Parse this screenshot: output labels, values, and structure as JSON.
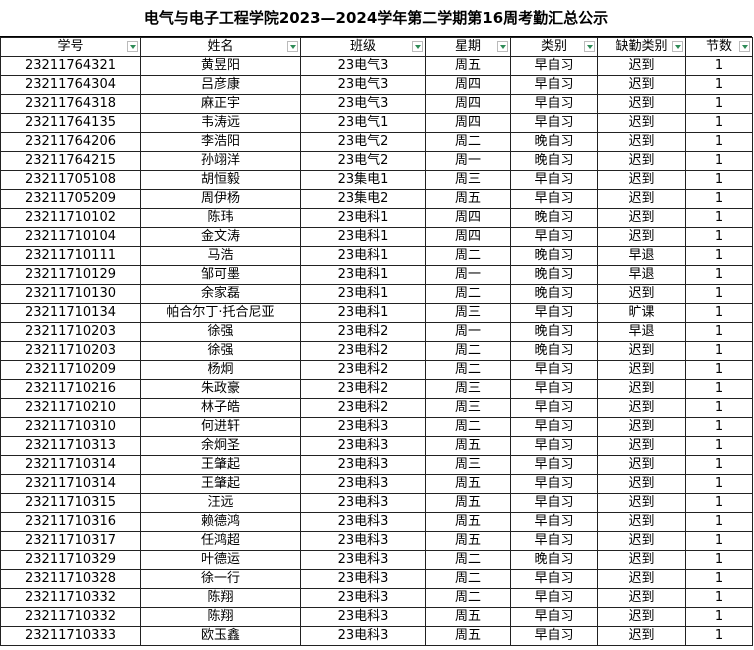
{
  "title": "电气与电子工程学院2023—2024学年第二学期第16周考勤汇总公示",
  "table": {
    "headers": [
      "学号",
      "姓名",
      "班级",
      "星期",
      "类别",
      "缺勤类别",
      "节数"
    ],
    "rows": [
      [
        "23211764321",
        "黄昱阳",
        "23电气3",
        "周五",
        "早自习",
        "迟到",
        "1"
      ],
      [
        "23211764304",
        "吕彦康",
        "23电气3",
        "周四",
        "早自习",
        "迟到",
        "1"
      ],
      [
        "23211764318",
        "麻正宇",
        "23电气3",
        "周四",
        "早自习",
        "迟到",
        "1"
      ],
      [
        "23211764135",
        "韦涛远",
        "23电气1",
        "周四",
        "早自习",
        "迟到",
        "1"
      ],
      [
        "23211764206",
        "李浩阳",
        "23电气2",
        "周二",
        "晚自习",
        "迟到",
        "1"
      ],
      [
        "23211764215",
        "孙翊洋",
        "23电气2",
        "周一",
        "晚自习",
        "迟到",
        "1"
      ],
      [
        "23211705108",
        "胡恒毅",
        "23集电1",
        "周三",
        "早自习",
        "迟到",
        "1"
      ],
      [
        "23211705209",
        "周伊杨",
        "23集电2",
        "周五",
        "早自习",
        "迟到",
        "1"
      ],
      [
        "23211710102",
        "陈玮",
        "23电科1",
        "周四",
        "晚自习",
        "迟到",
        "1"
      ],
      [
        "23211710104",
        "金文涛",
        "23电科1",
        "周四",
        "早自习",
        "迟到",
        "1"
      ],
      [
        "23211710111",
        "马浩",
        "23电科1",
        "周二",
        "晚自习",
        "早退",
        "1"
      ],
      [
        "23211710129",
        "邹可墨",
        "23电科1",
        "周一",
        "晚自习",
        "早退",
        "1"
      ],
      [
        "23211710130",
        "余家磊",
        "23电科1",
        "周二",
        "晚自习",
        "迟到",
        "1"
      ],
      [
        "23211710134",
        "帕合尔丁·托合尼亚",
        "23电科1",
        "周三",
        "早自习",
        "旷课",
        "1"
      ],
      [
        "23211710203",
        "徐强",
        "23电科2",
        "周一",
        "晚自习",
        "早退",
        "1"
      ],
      [
        "23211710203",
        "徐强",
        "23电科2",
        "周二",
        "晚自习",
        "迟到",
        "1"
      ],
      [
        "23211710209",
        "杨炯",
        "23电科2",
        "周二",
        "早自习",
        "迟到",
        "1"
      ],
      [
        "23211710216",
        "朱政豪",
        "23电科2",
        "周三",
        "早自习",
        "迟到",
        "1"
      ],
      [
        "23211710210",
        "林子皓",
        "23电科2",
        "周三",
        "早自习",
        "迟到",
        "1"
      ],
      [
        "23211710310",
        "何进轩",
        "23电科3",
        "周二",
        "早自习",
        "迟到",
        "1"
      ],
      [
        "23211710313",
        "余炯圣",
        "23电科3",
        "周五",
        "早自习",
        "迟到",
        "1"
      ],
      [
        "23211710314",
        "王肇起",
        "23电科3",
        "周三",
        "早自习",
        "迟到",
        "1"
      ],
      [
        "23211710314",
        "王肇起",
        "23电科3",
        "周五",
        "早自习",
        "迟到",
        "1"
      ],
      [
        "23211710315",
        "汪远",
        "23电科3",
        "周五",
        "早自习",
        "迟到",
        "1"
      ],
      [
        "23211710316",
        "赖德鸿",
        "23电科3",
        "周五",
        "早自习",
        "迟到",
        "1"
      ],
      [
        "23211710317",
        "任鸿超",
        "23电科3",
        "周五",
        "早自习",
        "迟到",
        "1"
      ],
      [
        "23211710329",
        "叶德运",
        "23电科3",
        "周二",
        "晚自习",
        "迟到",
        "1"
      ],
      [
        "23211710328",
        "徐一行",
        "23电科3",
        "周二",
        "早自习",
        "迟到",
        "1"
      ],
      [
        "23211710332",
        "陈翔",
        "23电科3",
        "周二",
        "早自习",
        "迟到",
        "1"
      ],
      [
        "23211710332",
        "陈翔",
        "23电科3",
        "周五",
        "早自习",
        "迟到",
        "1"
      ],
      [
        "23211710333",
        "欧玉鑫",
        "23电科3",
        "周五",
        "早自习",
        "迟到",
        "1"
      ]
    ]
  }
}
